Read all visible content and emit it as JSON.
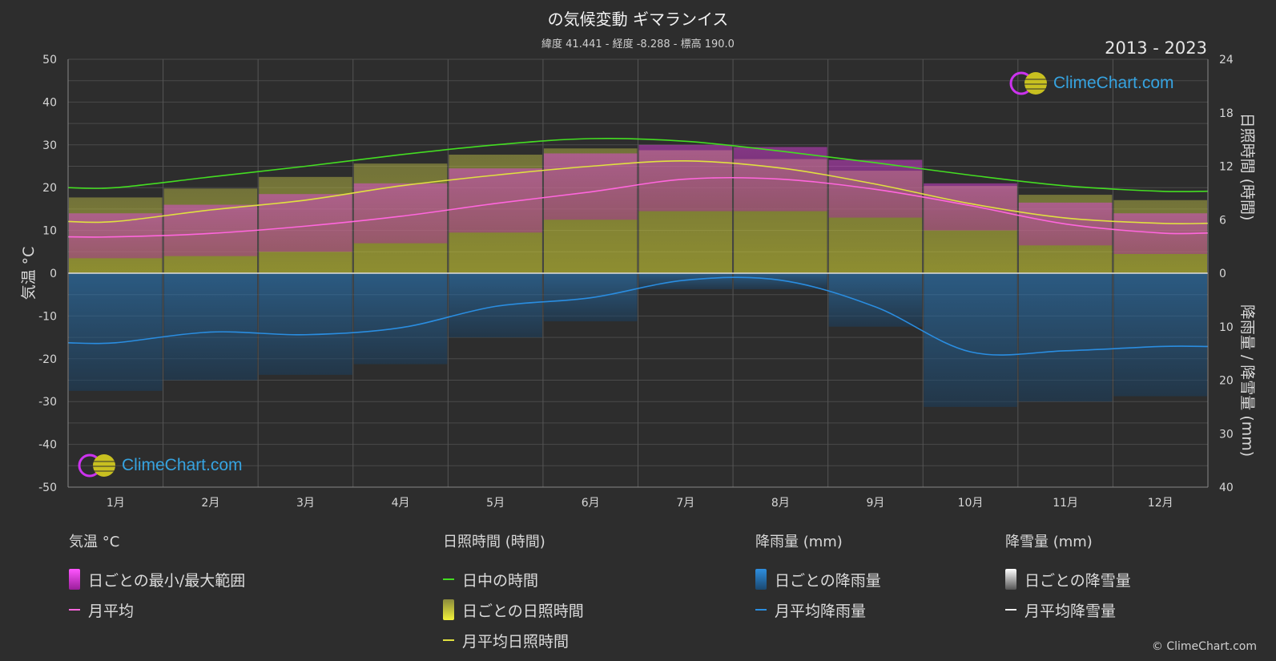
{
  "header": {
    "title": "の気候変動 ギマランイス",
    "subtitle": "緯度 41.441 - 経度 -8.288 - 標高 190.0",
    "years": "2013 - 2023"
  },
  "axes": {
    "left_label": "気温 °C",
    "right_top_label": "日照時間 (時間)",
    "right_bottom_label": "降雨量 / 降雪量 (mm)",
    "left_ticks": [
      "50",
      "40",
      "30",
      "20",
      "10",
      "0",
      "-10",
      "-20",
      "-30",
      "-40",
      "-50"
    ],
    "right_top_ticks": [
      "24",
      "18",
      "12",
      "6",
      "0"
    ],
    "right_bottom_ticks": [
      "10",
      "20",
      "30",
      "40"
    ],
    "months": [
      "1月",
      "2月",
      "3月",
      "4月",
      "5月",
      "6月",
      "7月",
      "8月",
      "9月",
      "10月",
      "11月",
      "12月"
    ]
  },
  "chart_data": {
    "type": "area",
    "x": [
      "1月",
      "2月",
      "3月",
      "4月",
      "5月",
      "6月",
      "7月",
      "8月",
      "9月",
      "10月",
      "11月",
      "12月"
    ],
    "ylim_temperature": [
      -50,
      50
    ],
    "ylim_sunshine_hours": [
      0,
      24
    ],
    "ylim_precipitation_mm": [
      0,
      40
    ],
    "grid": true,
    "series": [
      {
        "name": "日中の時間",
        "axis": "sunshine",
        "color": "#44dd22",
        "values": [
          9.6,
          10.8,
          12.0,
          13.3,
          14.4,
          15.1,
          14.8,
          13.7,
          12.4,
          11.0,
          9.8,
          9.2
        ]
      },
      {
        "name": "月平均日照時間",
        "axis": "sunshine",
        "color": "#e0e040",
        "values": [
          5.8,
          7.1,
          8.2,
          9.8,
          11.0,
          12.0,
          12.6,
          11.8,
          10.0,
          7.8,
          6.2,
          5.6
        ]
      },
      {
        "name": "月平均",
        "axis": "temperature",
        "color": "#ff66dd",
        "values": [
          8.5,
          9.3,
          11.0,
          13.3,
          16.3,
          19.0,
          22.0,
          22.0,
          19.6,
          15.8,
          11.5,
          9.4
        ]
      },
      {
        "name": "月平均降雨量",
        "axis": "precipitation",
        "color": "#2a8de0",
        "values": [
          13.0,
          11.0,
          11.5,
          10.2,
          6.2,
          4.6,
          1.3,
          1.3,
          6.3,
          14.7,
          14.5,
          13.7
        ]
      },
      {
        "name": "日ごとの最小/最大範囲",
        "axis": "temperature",
        "color": "#cc33cc",
        "min": [
          3.5,
          4.0,
          5.0,
          7.0,
          9.5,
          12.5,
          14.5,
          14.5,
          13.0,
          10.0,
          6.5,
          4.5
        ],
        "max": [
          14.0,
          16.0,
          18.5,
          21.0,
          24.5,
          28.0,
          30.0,
          29.5,
          26.5,
          21.0,
          16.5,
          14.0
        ]
      },
      {
        "name": "日ごとの日照時間",
        "axis": "sunshine",
        "color": "#c8c832",
        "values": [
          8.5,
          9.5,
          10.8,
          12.3,
          13.3,
          14.0,
          13.8,
          12.8,
          11.5,
          9.8,
          8.8,
          8.2
        ]
      },
      {
        "name": "日ごとの降雨量",
        "axis": "precipitation",
        "color": "#1f6fb5",
        "values": [
          22,
          20,
          19,
          17,
          12,
          9,
          3,
          3,
          10,
          25,
          24,
          23
        ]
      }
    ]
  },
  "legend": {
    "temperature": {
      "head": "気温 °C",
      "range": "日ごとの最小/最大範囲",
      "avg": "月平均"
    },
    "sunshine": {
      "head": "日照時間 (時間)",
      "daylight": "日中の時間",
      "daily": "日ごとの日照時間",
      "avg": "月平均日照時間"
    },
    "rain": {
      "head": "降雨量 (mm)",
      "daily": "日ごとの降雨量",
      "avg": "月平均降雨量"
    },
    "snow": {
      "head": "降雪量 (mm)",
      "daily": "日ごとの降雪量",
      "avg": "月平均降雪量"
    }
  },
  "brand": {
    "name": "ClimeChart.com",
    "copyright": "© ClimeChart.com"
  }
}
